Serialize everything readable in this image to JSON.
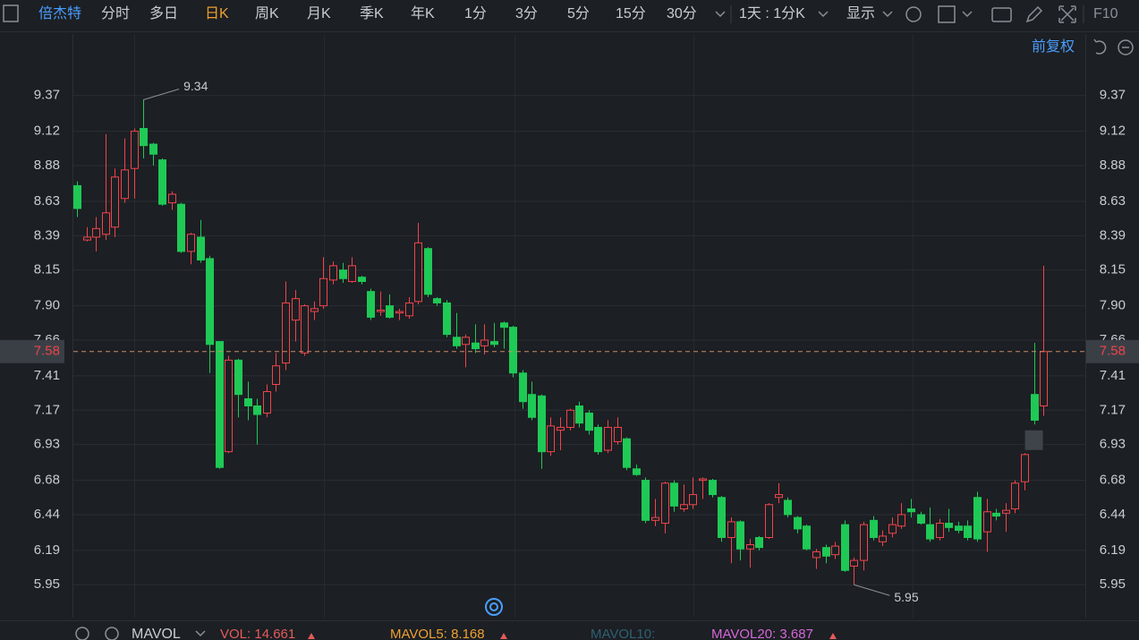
{
  "toolbar": {
    "stock": "倍杰特",
    "periods": [
      "分时",
      "多日",
      "日K",
      "周K",
      "月K",
      "季K",
      "年K",
      "1分",
      "3分",
      "5分",
      "15分",
      "30分"
    ],
    "interval": "1天 : 1分K",
    "display": "显示",
    "f10": "F10",
    "adjust": "前复权"
  },
  "indicator_bar": {
    "indicator": "MAVOL",
    "items": [
      "VOL: 14.661",
      "MAVOL5: 8.168",
      "MAVOL10:",
      "MAVOL20: 3.687"
    ]
  },
  "chart_data": {
    "type": "candlestick",
    "up_color": "#f0444b",
    "down_color": "#1fc956",
    "open": [
      8.74,
      8.36,
      8.38,
      8.4,
      8.45,
      8.65,
      8.86,
      9.14,
      9.03,
      8.92,
      8.62,
      8.61,
      8.28,
      8.38,
      8.23,
      7.65,
      6.88,
      7.52,
      7.25,
      7.2,
      7.15,
      7.35,
      7.5,
      7.8,
      7.57,
      7.86,
      7.9,
      8.08,
      8.15,
      8.07,
      8.1,
      8.0,
      7.86,
      7.9,
      7.85,
      7.83,
      7.93,
      8.3,
      7.95,
      7.92,
      7.68,
      7.63,
      7.64,
      7.62,
      7.65,
      7.78,
      7.75,
      7.43,
      7.28,
      7.27,
      6.88,
      7.03,
      7.05,
      7.2,
      7.15,
      7.05,
      6.89,
      6.95,
      6.97,
      6.76,
      6.68,
      6.4,
      6.38,
      6.66,
      6.48,
      6.51,
      6.68,
      6.68,
      6.56,
      6.28,
      6.39,
      6.2,
      6.28,
      6.28,
      6.56,
      6.54,
      6.42,
      6.36,
      6.14,
      6.21,
      6.16,
      6.37,
      6.08,
      6.12,
      6.4,
      6.25,
      6.31,
      6.36,
      6.48,
      6.44,
      6.37,
      6.28,
      6.38,
      6.36,
      6.36,
      6.56,
      6.32,
      6.45,
      6.45,
      6.48,
      6.67,
      7.28,
      7.2
    ],
    "high": [
      8.77,
      8.45,
      8.52,
      9.1,
      8.86,
      9.07,
      9.14,
      9.34,
      9.04,
      8.93,
      8.7,
      8.62,
      8.41,
      8.5,
      8.25,
      7.65,
      7.55,
      7.53,
      7.37,
      7.25,
      7.35,
      7.57,
      8.07,
      8.01,
      7.91,
      7.93,
      8.24,
      8.21,
      8.2,
      8.24,
      8.11,
      8.02,
      8.0,
      7.98,
      7.88,
      7.96,
      8.48,
      8.31,
      7.96,
      7.94,
      7.85,
      7.7,
      7.77,
      7.77,
      7.78,
      7.79,
      7.76,
      7.45,
      7.37,
      7.28,
      7.12,
      7.12,
      7.18,
      7.23,
      7.17,
      7.07,
      7.1,
      7.12,
      6.98,
      6.79,
      6.7,
      6.55,
      6.67,
      6.68,
      6.65,
      6.7,
      6.7,
      6.69,
      6.57,
      6.42,
      6.4,
      6.27,
      6.29,
      6.52,
      6.66,
      6.56,
      6.43,
      6.37,
      6.2,
      6.23,
      6.25,
      6.4,
      6.14,
      6.39,
      6.43,
      6.33,
      6.42,
      6.52,
      6.55,
      6.46,
      6.49,
      6.41,
      6.48,
      6.39,
      6.4,
      6.6,
      6.55,
      6.48,
      6.52,
      6.68,
      6.87,
      7.64,
      8.18
    ],
    "low": [
      8.52,
      8.35,
      8.28,
      8.36,
      8.38,
      8.62,
      8.65,
      8.93,
      8.88,
      8.6,
      8.57,
      8.27,
      8.19,
      8.2,
      7.43,
      6.76,
      6.87,
      7.12,
      7.1,
      6.93,
      7.12,
      7.3,
      7.45,
      7.65,
      7.55,
      7.8,
      7.88,
      8.05,
      8.06,
      8.06,
      8.05,
      7.8,
      7.83,
      7.81,
      7.8,
      7.81,
      7.91,
      7.96,
      7.9,
      7.68,
      7.6,
      7.47,
      7.57,
      7.56,
      7.61,
      7.6,
      7.4,
      7.18,
      7.1,
      6.76,
      6.85,
      6.89,
      7.03,
      7.05,
      7.0,
      6.86,
      6.87,
      6.93,
      6.75,
      6.71,
      6.38,
      6.36,
      6.31,
      6.46,
      6.46,
      6.48,
      6.55,
      6.56,
      6.25,
      6.1,
      6.12,
      6.07,
      6.19,
      6.27,
      6.52,
      6.42,
      6.31,
      6.19,
      6.06,
      6.1,
      6.13,
      6.04,
      5.95,
      6.05,
      6.26,
      6.22,
      6.28,
      6.34,
      6.42,
      6.37,
      6.25,
      6.26,
      6.32,
      6.31,
      6.26,
      6.25,
      6.18,
      6.4,
      6.32,
      6.45,
      6.61,
      7.07,
      7.13
    ],
    "close": [
      8.58,
      8.38,
      8.44,
      8.55,
      8.8,
      8.85,
      9.12,
      9.02,
      8.96,
      8.61,
      8.68,
      8.28,
      8.4,
      8.22,
      7.63,
      6.77,
      7.52,
      7.28,
      7.2,
      7.14,
      7.3,
      7.48,
      7.92,
      7.95,
      7.9,
      7.88,
      8.09,
      8.18,
      8.09,
      8.18,
      8.07,
      7.82,
      7.87,
      7.82,
      7.86,
      7.92,
      8.34,
      7.98,
      7.92,
      7.7,
      7.62,
      7.68,
      7.6,
      7.66,
      7.63,
      7.75,
      7.43,
      7.23,
      7.12,
      6.88,
      7.06,
      7.05,
      7.17,
      7.08,
      7.03,
      6.88,
      7.05,
      7.05,
      6.77,
      6.72,
      6.4,
      6.42,
      6.66,
      6.5,
      6.51,
      6.58,
      6.69,
      6.58,
      6.28,
      6.39,
      6.2,
      6.23,
      6.21,
      6.51,
      6.58,
      6.44,
      6.34,
      6.2,
      6.18,
      6.15,
      6.22,
      6.05,
      6.12,
      6.37,
      6.28,
      6.29,
      6.37,
      6.44,
      6.46,
      6.38,
      6.27,
      6.38,
      6.35,
      6.33,
      6.28,
      6.27,
      6.46,
      6.43,
      6.47,
      6.66,
      6.86,
      7.1,
      7.58
    ],
    "ylim": [
      5.72,
      9.8
    ],
    "yticks": [
      9.37,
      9.12,
      8.88,
      8.63,
      8.39,
      8.15,
      {
        "value": 7.9,
        "label": "7.90"
      },
      7.66,
      7.41,
      7.17,
      6.93,
      6.68,
      6.44,
      6.19,
      5.95
    ],
    "grid": true
  }
}
